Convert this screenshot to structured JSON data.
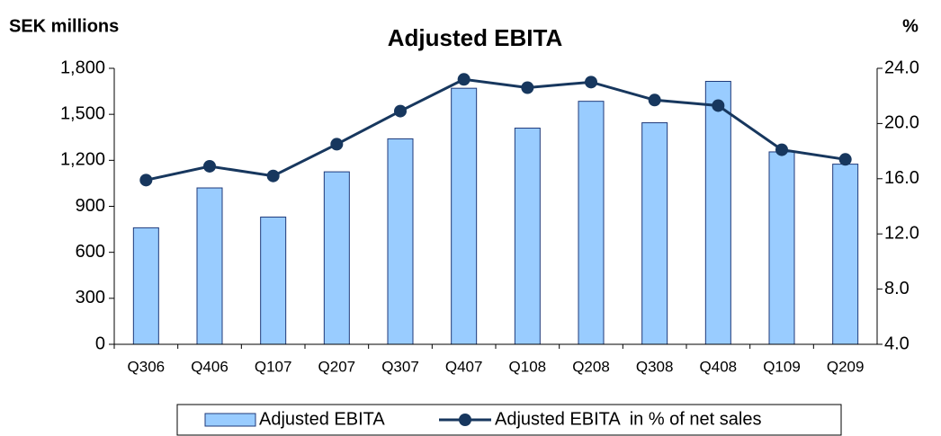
{
  "chart_data": {
    "type": "bar_line",
    "title": "Adjusted EBITA",
    "y_label": "SEK millions",
    "y2_label": "%",
    "categories": [
      "Q306",
      "Q406",
      "Q107",
      "Q207",
      "Q307",
      "Q407",
      "Q108",
      "Q208",
      "Q308",
      "Q408",
      "Q109",
      "Q209"
    ],
    "series": [
      {
        "name": "Adjusted EBITA",
        "type": "bar",
        "color": "#99ccff",
        "values": [
          760,
          1020,
          830,
          1125,
          1340,
          1670,
          1410,
          1585,
          1445,
          1715,
          1255,
          1175
        ]
      },
      {
        "name": "Adjusted EBITA  in % of net sales",
        "type": "line",
        "axis": "y2",
        "color": "#17375e",
        "values": [
          15.9,
          16.9,
          16.2,
          18.5,
          20.9,
          23.2,
          22.6,
          23.0,
          21.7,
          21.3,
          18.1,
          17.4
        ]
      }
    ],
    "ylim": [
      0,
      1800
    ],
    "yticks": [
      0,
      300,
      600,
      900,
      {
        "value": 1200,
        "label": "1,200"
      },
      {
        "value": 1500,
        "label": "1,500"
      },
      {
        "value": 1800,
        "label": "1,800"
      }
    ],
    "y2lim": [
      4,
      24
    ],
    "y2ticks": [
      {
        "value": 4,
        "label": "4.0"
      },
      {
        "value": 8,
        "label": "8.0"
      },
      {
        "value": 12,
        "label": "12.0"
      },
      {
        "value": 16,
        "label": "16.0"
      },
      {
        "value": 20,
        "label": "20.0"
      },
      {
        "value": 24,
        "label": "24.0"
      }
    ],
    "legend": "bottom"
  }
}
